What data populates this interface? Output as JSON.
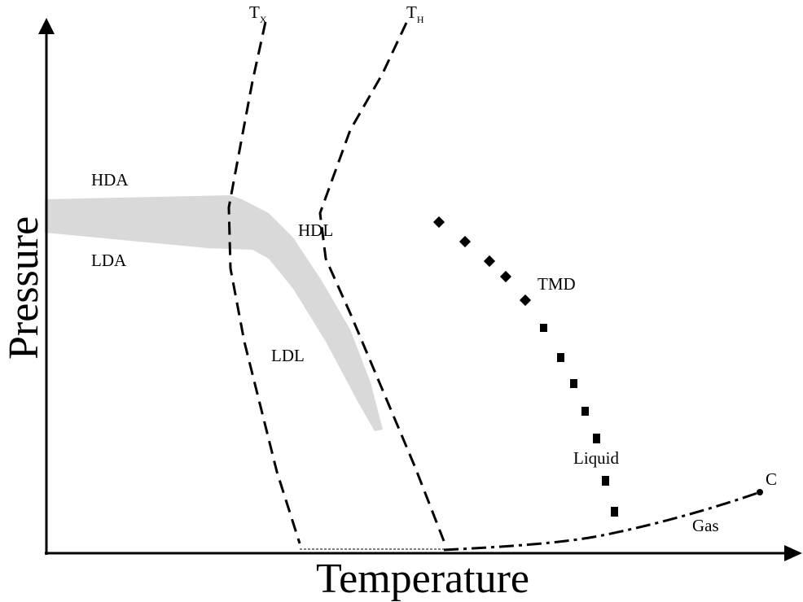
{
  "axes": {
    "x_title": "Temperature",
    "y_title": "Pressure"
  },
  "curves": {
    "tx": {
      "label": "T",
      "subscript": "X",
      "style": "dashed"
    },
    "th": {
      "label": "T",
      "subscript": "H",
      "style": "dashed"
    },
    "tmd": {
      "label": "TMD",
      "style": "dotted"
    },
    "coexistence": {
      "style": "dash-dot",
      "endpoint_label": "C"
    }
  },
  "regions": {
    "hda": "HDA",
    "lda": "LDA",
    "hdl": "HDL",
    "ldl": "LDL",
    "liquid": "Liquid",
    "gas": "Gas"
  },
  "colors": {
    "ink": "#000000",
    "band": "#d9d9d9",
    "background": "#ffffff"
  }
}
